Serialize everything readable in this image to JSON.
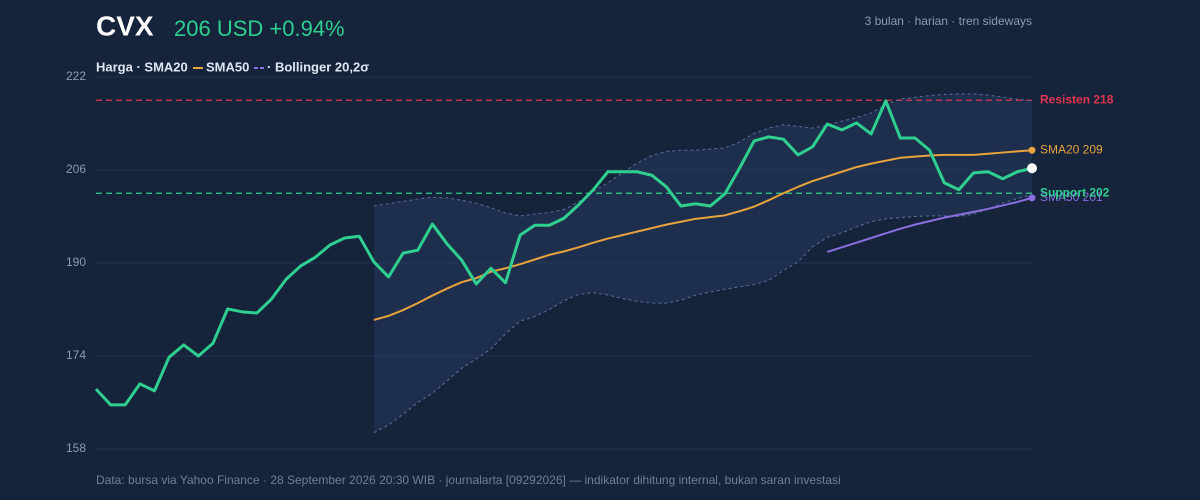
{
  "chart_data": {
    "type": "line",
    "ticker": "CVX",
    "quote": "206 USD +0.94%",
    "subtitle": "3 bulan · harian · tren sideways",
    "legend_text": [
      "Harga · SMA20",
      "SMA50",
      "· Bollinger 20,2σ"
    ],
    "footer": "Data: bursa via Yahoo Finance · 28 September 2026 20:30 WIB · journalarta [09292026] — indikator dihitung internal, bukan saran investasi",
    "ylim": [
      158,
      222
    ],
    "yticks": [
      158,
      174,
      190,
      206,
      222
    ],
    "grid": true,
    "series": [
      {
        "color": "#2fcf8f",
        "values": [
          168.3,
          165.6,
          165.6,
          169.2,
          168.0,
          173.8,
          175.9,
          174.0,
          176.2,
          182.1,
          181.6,
          181.4,
          183.8,
          187.2,
          189.5,
          191.0,
          193.1,
          194.3,
          194.6,
          190.2,
          187.6,
          191.7,
          192.2,
          196.7,
          193.3,
          190.5,
          186.4,
          189.1,
          186.6,
          194.8,
          196.5,
          196.5,
          197.7,
          200.0,
          202.6,
          205.7,
          205.7,
          205.7,
          205.1,
          203.1,
          199.8,
          200.2,
          199.8,
          201.9,
          206.3,
          211.0,
          211.7,
          211.3,
          208.6,
          210.0,
          213.9,
          212.9,
          214.1,
          212.2,
          217.9,
          211.5,
          211.5,
          209.4,
          203.8,
          202.6,
          205.5,
          205.7,
          204.5,
          205.7,
          206.3
        ]
      },
      {
        "color": "#e8a33d",
        "end_label": "SMA20 209",
        "values": [
          null,
          null,
          null,
          null,
          null,
          null,
          null,
          null,
          null,
          null,
          null,
          null,
          null,
          null,
          null,
          null,
          null,
          null,
          null,
          180.2,
          180.9,
          181.9,
          183.1,
          184.4,
          185.6,
          186.7,
          187.4,
          188.5,
          189.1,
          189.8,
          190.6,
          191.4,
          192.0,
          192.7,
          193.5,
          194.2,
          194.8,
          195.4,
          196.0,
          196.6,
          197.1,
          197.6,
          197.9,
          198.2,
          198.9,
          199.7,
          200.8,
          202.0,
          203.1,
          204.1,
          204.9,
          205.7,
          206.5,
          207.1,
          207.6,
          208.1,
          208.3,
          208.5,
          208.6,
          208.6,
          208.6,
          208.8,
          209.0,
          209.2,
          209.4
        ]
      },
      {
        "color": "#8b6fe0",
        "end_label": "SMA50 201",
        "values": [
          null,
          null,
          null,
          null,
          null,
          null,
          null,
          null,
          null,
          null,
          null,
          null,
          null,
          null,
          null,
          null,
          null,
          null,
          null,
          null,
          null,
          null,
          null,
          null,
          null,
          null,
          null,
          null,
          null,
          null,
          null,
          null,
          null,
          null,
          null,
          null,
          null,
          null,
          null,
          null,
          null,
          null,
          null,
          null,
          null,
          null,
          null,
          null,
          null,
          null,
          191.9,
          192.7,
          193.5,
          194.3,
          195.1,
          195.9,
          196.6,
          197.2,
          197.8,
          198.3,
          198.8,
          199.3,
          199.9,
          200.5,
          201.2
        ]
      },
      {
        "color": "#5b6d9c",
        "band": "upper",
        "values": [
          null,
          null,
          null,
          null,
          null,
          null,
          null,
          null,
          null,
          null,
          null,
          null,
          null,
          null,
          null,
          null,
          null,
          null,
          null,
          199.8,
          200.2,
          200.6,
          201.0,
          201.3,
          201.2,
          200.8,
          200.3,
          199.5,
          198.6,
          198.1,
          198.4,
          198.7,
          199.2,
          200.5,
          202.3,
          203.8,
          205.5,
          207.2,
          208.5,
          209.2,
          209.4,
          209.4,
          209.6,
          209.8,
          210.8,
          212.3,
          213.2,
          213.8,
          213.5,
          213.2,
          213.7,
          214.4,
          215.0,
          215.8,
          217.2,
          218.2,
          218.5,
          218.8,
          219.0,
          219.1,
          219.1,
          218.9,
          218.5,
          218.2,
          217.9
        ]
      },
      {
        "color": "#5b6d9c",
        "band": "lower",
        "values": [
          null,
          null,
          null,
          null,
          null,
          null,
          null,
          null,
          null,
          null,
          null,
          null,
          null,
          null,
          null,
          null,
          null,
          null,
          null,
          160.8,
          162.1,
          164.0,
          166.0,
          167.6,
          169.7,
          171.9,
          173.5,
          175.2,
          177.8,
          180.0,
          180.8,
          182.0,
          183.5,
          184.6,
          184.9,
          184.5,
          183.9,
          183.4,
          183.1,
          183.1,
          183.6,
          184.5,
          185.0,
          185.5,
          185.9,
          186.3,
          187.0,
          188.7,
          190.2,
          192.8,
          194.4,
          195.2,
          196.2,
          197.1,
          197.6,
          197.8,
          198.0,
          198.1,
          198.1,
          198.0,
          198.4,
          199.3,
          200.3,
          201.1,
          201.7
        ]
      }
    ],
    "hlines": [
      {
        "label": "Resisten 218",
        "value": 218,
        "color": "#e0364f"
      },
      {
        "label": "Support 202",
        "value": 202,
        "color": "#2fcf8f"
      }
    ]
  }
}
